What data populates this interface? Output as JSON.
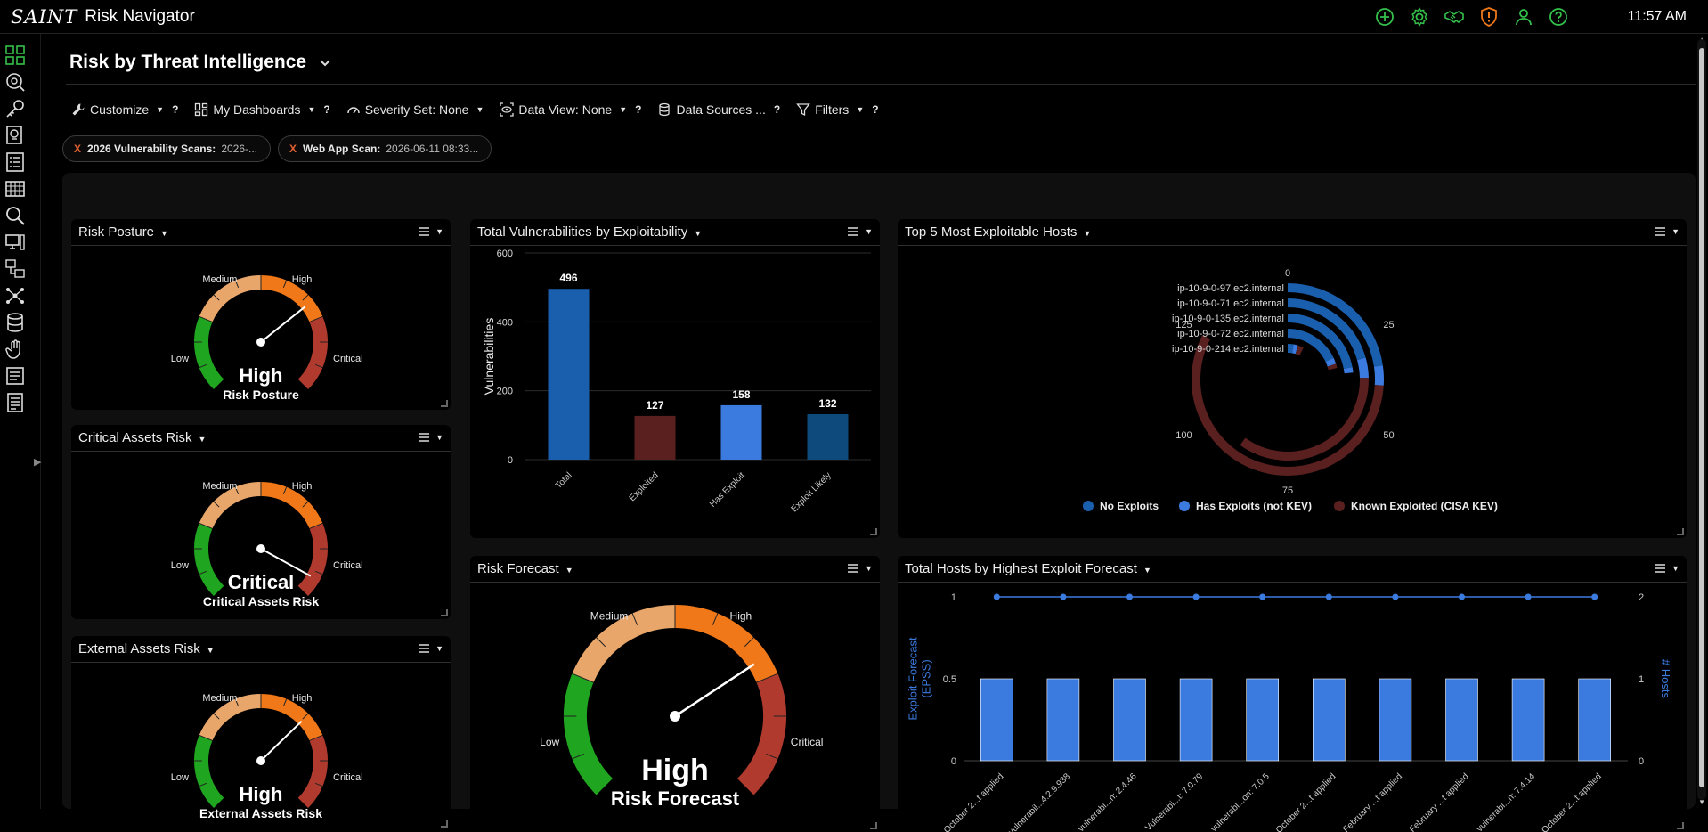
{
  "app": {
    "logo_text": "SAINT",
    "title": "Risk Navigator",
    "clock": "11:57 AM"
  },
  "top_icons": [
    "plus-circle-icon",
    "gear-icon",
    "handshake-icon",
    "shield-alert-icon",
    "user-icon",
    "help-circle-icon"
  ],
  "sidebar_icons": [
    "dashboard-grid-icon",
    "scan-search-icon",
    "key-icon",
    "certificate-icon",
    "checklist-icon",
    "calendar-grid-icon",
    "magnifier-icon",
    "monitor-icon",
    "network-monitors-icon",
    "topology-icon",
    "database-icon",
    "hand-icon",
    "report-icon",
    "document-icon"
  ],
  "page": {
    "title": "Risk by Threat Intelligence"
  },
  "toolbar": {
    "customize": "Customize",
    "my_dashboards": "My Dashboards",
    "severity_set": "Severity Set: None",
    "data_view": "Data View: None",
    "data_sources": "Data Sources ...",
    "filters": "Filters",
    "help": "?"
  },
  "filter_chips": [
    {
      "remove": "X",
      "label": "2026 Vulnerability Scans:",
      "value": "2026-..."
    },
    {
      "remove": "X",
      "label": "Web App Scan:",
      "value": "2026-06-11 08:33..."
    }
  ],
  "gauge_labels": {
    "low": "Low",
    "medium": "Medium",
    "high": "High",
    "critical": "Critical"
  },
  "colors": {
    "low": "#1fa51f",
    "medium": "#e8a66a",
    "high": "#f07819",
    "critical": "#b03a2e",
    "accent": "#1e6fd9"
  },
  "panels": {
    "risk_posture": {
      "title": "Risk Posture",
      "value": "High",
      "label": "Risk Posture",
      "needle_fraction": 0.69
    },
    "critical_assets": {
      "title": "Critical Assets Risk",
      "value": "Critical",
      "label": "Critical Assets Risk",
      "needle_fraction": 0.94
    },
    "external_assets": {
      "title": "External Assets Risk",
      "value": "High",
      "label": "External Assets Risk",
      "needle_fraction": 0.67
    },
    "risk_forecast": {
      "title": "Risk Forecast",
      "value": "High",
      "label": "Risk Forecast",
      "needle_fraction": 0.71
    },
    "total_vulns": {
      "title": "Total Vulnerabilities by Exploitability"
    },
    "top_hosts": {
      "title": "Top 5 Most Exploitable Hosts"
    },
    "hosts_forecast": {
      "title": "Total Hosts by Highest Exploit Forecast"
    }
  },
  "chart_data": [
    {
      "type": "bar",
      "title": "Total Vulnerabilities by Exploitability",
      "ylabel": "Vulnerabilities",
      "categories": [
        "Total",
        "Exploited",
        "Has Exploit",
        "Exploit Likely"
      ],
      "values": [
        496,
        127,
        158,
        132
      ],
      "colors": [
        "#1a5fad",
        "#5a1f1f",
        "#3b7be0",
        "#0f4a7c"
      ],
      "ylim": [
        0,
        600
      ],
      "yticks": [
        0,
        200,
        400,
        600
      ],
      "grid": true
    },
    {
      "type": "bar",
      "title": "Top 5 Most Exploitable Hosts",
      "polar": true,
      "hosts": [
        "ip-10-9-0-97.ec2.internal",
        "ip-10-9-0-71.ec2.internal",
        "ip-10-9-0-135.ec2.internal",
        "ip-10-9-0-72.ec2.internal",
        "ip-10-9-0-214.ec2.internal"
      ],
      "series": [
        {
          "name": "No Exploits",
          "color": "#1a5fad",
          "values": [
            34,
            31,
            33,
            27,
            4
          ]
        },
        {
          "name": "Has Exploits (not KEV)",
          "color": "#3b7be0",
          "values": [
            5,
            6,
            2,
            3,
            3
          ]
        },
        {
          "name": "Known Exploited (CISA KEV)",
          "color": "#5a1f1f",
          "values": [
            85,
            53,
            0,
            2,
            4
          ]
        }
      ],
      "angular_ticks": [
        0,
        25,
        50,
        75,
        100,
        125
      ],
      "angular_max": 150,
      "legend": "bottom"
    },
    {
      "type": "bar",
      "title": "Total Hosts by Highest Exploit Forecast",
      "categories": [
        "October 2...t applied",
        "vulnerabil...4.2.9.938",
        "vulnerabi...n: 2.4.46",
        "Vulnerabi...t: 7.0.79",
        "vulnerabl...on: 7.0.5",
        "October 2...t applied",
        "February ...t applied",
        "February ...t applied",
        "vulnerabi...n: 7.4.14",
        "October 2...t applied"
      ],
      "series": [
        {
          "name": "Exploit Forecast (EPSS)",
          "type": "bar",
          "axis": "left",
          "color": "#3b7be0",
          "values": [
            0.5,
            0.5,
            0.5,
            0.5,
            0.5,
            0.5,
            0.5,
            0.5,
            0.5,
            0.5
          ]
        },
        {
          "name": "# Hosts",
          "type": "line",
          "axis": "right",
          "color": "#3b7be0",
          "values": [
            2,
            2,
            2,
            2,
            2,
            2,
            2,
            2,
            2,
            2
          ]
        }
      ],
      "ylabel": "Exploit Forecast (EPSS)",
      "y2label": "# Hosts",
      "ylim": [
        0,
        1
      ],
      "yticks": [
        0,
        0.5,
        1
      ],
      "y2lim": [
        0,
        2
      ],
      "y2ticks": [
        0,
        1,
        2
      ]
    }
  ]
}
